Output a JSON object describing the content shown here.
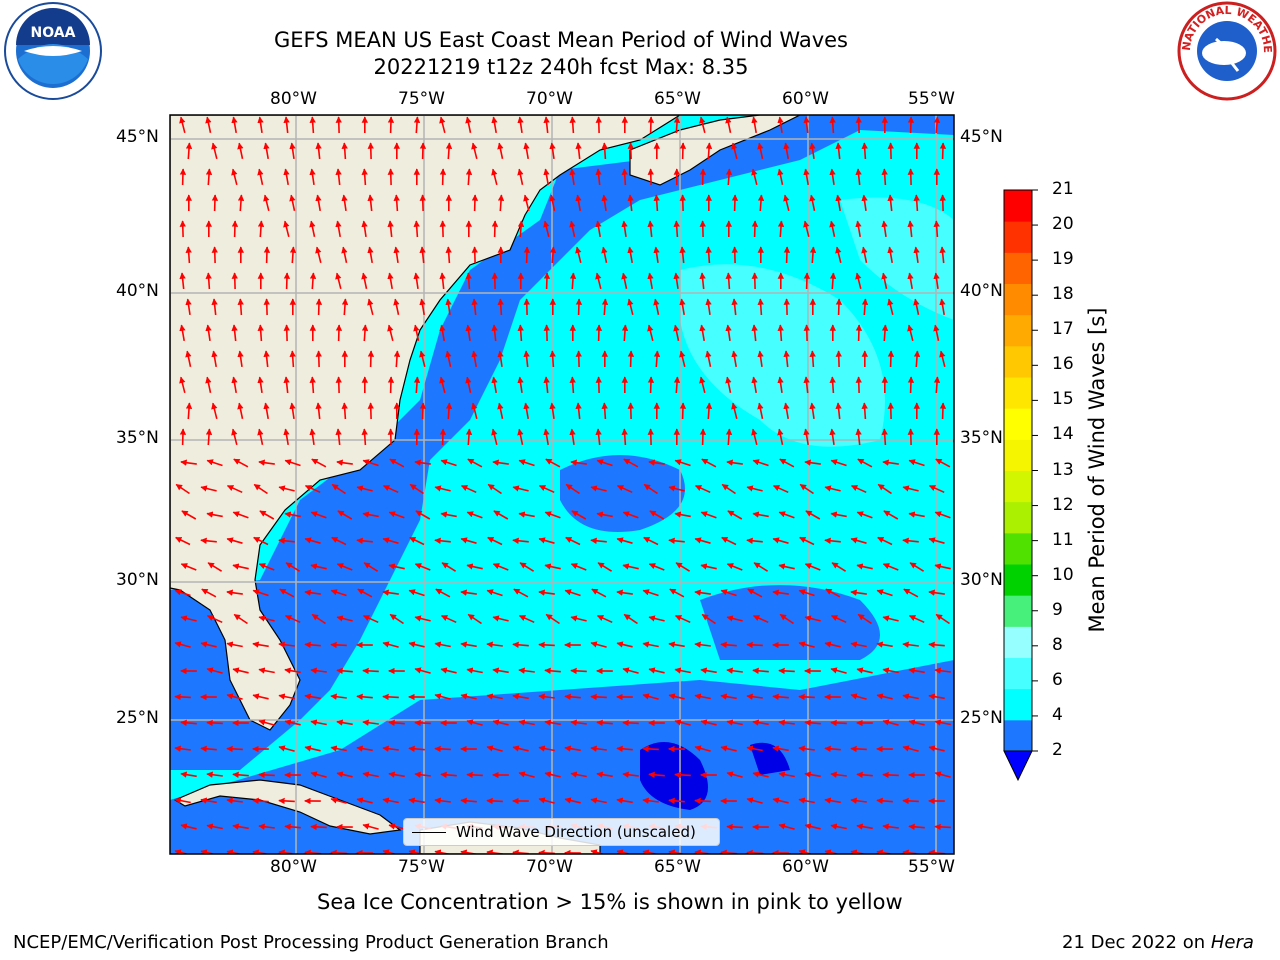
{
  "header": {
    "title_line1": "GEFS MEAN US East Coast Mean Period of Wind Waves",
    "title_line2": "20221219 t12z 240h fcst   Max: 8.35"
  },
  "logos": {
    "left_text": "NOAA",
    "right_text": "NATIONAL WEATHER SERVICE"
  },
  "map": {
    "lon_labels": [
      "80°W",
      "75°W",
      "70°W",
      "65°W",
      "60°W",
      "55°W"
    ],
    "lat_labels": [
      "45°N",
      "40°N",
      "35°N",
      "30°N",
      "25°N"
    ],
    "legend_label": "Wind Wave Direction (unscaled)",
    "colors": {
      "land": "#efedde",
      "blue": "#1e78ff",
      "cyan": "#00ffff",
      "light_cyan": "#46ffff",
      "dark_blue": "#0000e6",
      "arrow": "#ff0000"
    }
  },
  "colorbar": {
    "label": "Mean Period of Wind Waves [s]",
    "ticks": [
      "21",
      "20",
      "19",
      "18",
      "17",
      "16",
      "15",
      "14",
      "13",
      "12",
      "11",
      "10",
      "9",
      "8",
      "6",
      "4",
      "2"
    ],
    "colors_bottom_to_top": [
      "#1e78ff",
      "#00ffff",
      "#46ffff",
      "#96ffff",
      "#46f07a",
      "#00d200",
      "#50e100",
      "#aaf000",
      "#d2f500",
      "#f5f500",
      "#ffff00",
      "#ffe600",
      "#ffc800",
      "#ffaa00",
      "#ff8c00",
      "#ff6400",
      "#ff3200",
      "#ff0000"
    ],
    "extend_color": "#0000ff"
  },
  "caption": "Sea Ice Concentration > 15% is shown in pink to yellow",
  "footer": {
    "left": "NCEP/EMC/Verification Post Processing Product Generation Branch",
    "date": "21 Dec 2022 on ",
    "machine": "Hera"
  }
}
